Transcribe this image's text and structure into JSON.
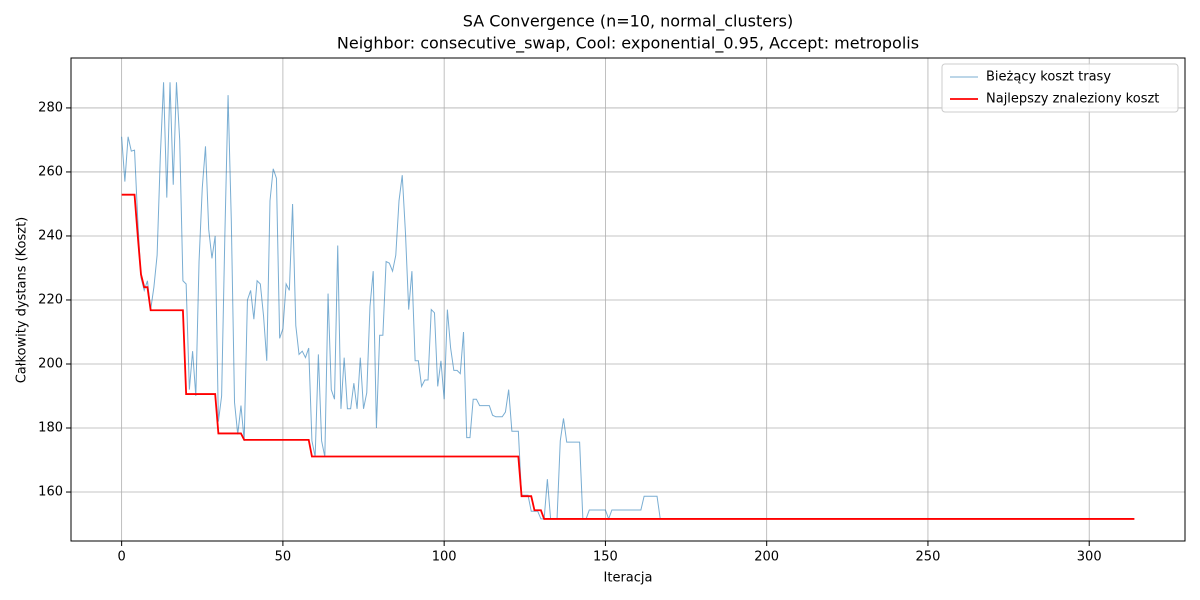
{
  "chart_data": {
    "type": "line",
    "title": "SA Convergence (n=10, normal_clusters)",
    "subtitle": "Neighbor: consecutive_swap, Cool: exponential_0.95, Accept: metropolis",
    "x_label": "Iteracja",
    "y_label": "Całkowity dystans (Koszt)",
    "xlim": [
      -15.7,
      329.7
    ],
    "ylim": [
      144.7,
      295.6
    ],
    "xticks": [
      0,
      50,
      100,
      150,
      200,
      250,
      300
    ],
    "yticks": [
      160,
      180,
      200,
      220,
      240,
      260,
      280
    ],
    "grid": true,
    "legend": "upper right",
    "x": [
      0,
      1,
      2,
      3,
      4,
      5,
      6,
      7,
      8,
      9,
      10,
      11,
      12,
      13,
      14,
      15,
      16,
      17,
      18,
      19,
      20,
      21,
      22,
      23,
      24,
      25,
      26,
      27,
      28,
      29,
      30,
      31,
      32,
      33,
      34,
      35,
      36,
      37,
      38,
      39,
      40,
      41,
      42,
      43,
      44,
      45,
      46,
      47,
      48,
      49,
      50,
      51,
      52,
      53,
      54,
      55,
      56,
      57,
      58,
      59,
      60,
      61,
      62,
      63,
      64,
      65,
      66,
      67,
      68,
      69,
      70,
      71,
      72,
      73,
      74,
      75,
      76,
      77,
      78,
      79,
      80,
      81,
      82,
      83,
      84,
      85,
      86,
      87,
      88,
      89,
      90,
      91,
      92,
      93,
      94,
      95,
      96,
      97,
      98,
      99,
      100,
      101,
      102,
      103,
      104,
      105,
      106,
      107,
      108,
      109,
      110,
      111,
      112,
      113,
      114,
      115,
      116,
      117,
      118,
      119,
      120,
      121,
      122,
      123,
      124,
      125,
      126,
      127,
      128,
      129,
      130,
      131,
      132,
      133,
      134,
      135,
      136,
      137,
      138,
      139,
      140,
      141,
      142,
      143,
      144,
      145,
      146,
      147,
      148,
      149,
      150,
      151,
      152,
      153,
      154,
      155,
      156,
      157,
      158,
      159,
      160,
      161,
      162,
      163,
      164,
      165,
      166,
      167,
      168,
      169,
      170,
      171,
      172,
      173,
      174,
      175,
      176,
      177,
      178,
      179,
      180,
      181,
      182,
      183,
      184,
      185,
      186,
      187,
      188,
      189,
      190,
      191,
      192,
      193,
      194,
      195,
      196,
      197,
      198,
      199,
      200,
      201,
      202,
      203,
      204,
      205,
      206,
      207,
      208,
      209,
      210,
      211,
      212,
      213,
      214,
      215,
      216,
      217,
      218,
      219,
      220,
      221,
      222,
      223,
      224,
      225,
      226,
      227,
      228,
      229,
      230,
      231,
      232,
      233,
      234,
      235,
      236,
      237,
      238,
      239,
      240,
      241,
      242,
      243,
      244,
      245,
      246,
      247,
      248,
      249,
      250,
      251,
      252,
      253,
      254,
      255,
      256,
      257,
      258,
      259,
      260,
      261,
      262,
      263,
      264,
      265,
      266,
      267,
      268,
      269,
      270,
      271,
      272,
      273,
      274,
      275,
      276,
      277,
      278,
      279,
      280,
      281,
      282,
      283,
      284,
      285,
      286,
      287,
      288,
      289,
      290,
      291,
      292,
      293,
      294,
      295,
      296,
      297,
      298,
      299,
      300,
      301,
      302,
      303,
      304,
      305,
      306,
      307,
      308,
      309,
      310,
      311,
      312,
      313,
      314
    ],
    "series": [
      {
        "name": "Bieżący koszt trasy",
        "color": "#1f77b4",
        "values": [
          271,
          257,
          271,
          266.5,
          266.8,
          245,
          227,
          223,
          226,
          217,
          224,
          234,
          265,
          288,
          252,
          288,
          256,
          288,
          270,
          226,
          225,
          192,
          204,
          190,
          232,
          255,
          268,
          242,
          233,
          240,
          182,
          190,
          240,
          284,
          245,
          188,
          178,
          187,
          176,
          220,
          223,
          214,
          226,
          225,
          215,
          201,
          251,
          261,
          258,
          208,
          211,
          225,
          223,
          250,
          212,
          203,
          204,
          202,
          205,
          176,
          171,
          203,
          176,
          171,
          222,
          192,
          189,
          237,
          186,
          202,
          186,
          186,
          194,
          186,
          202,
          186,
          191,
          218,
          229,
          180,
          209,
          209,
          232,
          231.5,
          229,
          234,
          251,
          259,
          241,
          217,
          229,
          201,
          201,
          193,
          195,
          195,
          217,
          216,
          193,
          201,
          189,
          217,
          205,
          198,
          198,
          197,
          210,
          177,
          177,
          189,
          189,
          187,
          187,
          187,
          187,
          184,
          183.5,
          183.5,
          183.5,
          185,
          192,
          179,
          179,
          179,
          159,
          159,
          159,
          154,
          154,
          154,
          151.6,
          151.6,
          164,
          151.6,
          151.6,
          151.6,
          176,
          183,
          175.6,
          175.6,
          175.6,
          175.6,
          175.6,
          151.6,
          151.6,
          154.4,
          154.4,
          154.4,
          154.4,
          154.4,
          154.4,
          151.6,
          154.4,
          154.4,
          154.4,
          154.4,
          154.4,
          154.4,
          154.4,
          154.4,
          154.4,
          154.4,
          158.7,
          158.7,
          158.7,
          158.7,
          158.7,
          151.6,
          151.6,
          151.6,
          151.6,
          151.6,
          151.6,
          151.6,
          151.6,
          151.6,
          151.6,
          151.6,
          151.6,
          151.6,
          151.6,
          151.6,
          151.6,
          151.6,
          151.6,
          151.6,
          151.6,
          151.6,
          151.6,
          151.6,
          151.6,
          151.6,
          151.6,
          151.6,
          151.6,
          151.6,
          151.6,
          151.6,
          151.6,
          151.6,
          151.6,
          151.6,
          151.6,
          151.6,
          151.6,
          151.6,
          151.6,
          151.6,
          151.6,
          151.6,
          151.6,
          151.6,
          151.6,
          151.6,
          151.6,
          151.6,
          151.6,
          151.6,
          151.6,
          151.6,
          151.6,
          151.6,
          151.6,
          151.6,
          151.6,
          151.6,
          151.6,
          151.6,
          151.6,
          151.6,
          151.6,
          151.6,
          151.6,
          151.6,
          151.6,
          151.6,
          151.6,
          151.6,
          151.6,
          151.6,
          151.6,
          151.6,
          151.6,
          151.6,
          151.6,
          151.6,
          151.6,
          151.6,
          151.6,
          151.6,
          151.6,
          151.6,
          151.6,
          151.6,
          151.6,
          151.6,
          151.6,
          151.6,
          151.6,
          151.6,
          151.6,
          151.6,
          151.6,
          151.6,
          151.6,
          151.6,
          151.6,
          151.6,
          151.6,
          151.6,
          151.6,
          151.6,
          151.6,
          151.6,
          151.6,
          151.6,
          151.6,
          151.6,
          151.6,
          151.6,
          151.6,
          151.6,
          151.6,
          151.6,
          151.6,
          151.6,
          151.6,
          151.6,
          151.6,
          151.6,
          151.6,
          151.6,
          151.6,
          151.6,
          151.6,
          151.6,
          151.6,
          151.6,
          151.6,
          151.6,
          151.6,
          151.6,
          151.6,
          151.6,
          151.6,
          151.6,
          151.6,
          151.6,
          151.6,
          151.6,
          151.6,
          151.6,
          151.6,
          151.6,
          151.6
        ]
      },
      {
        "name": "Najlepszy znaleziony koszt",
        "color": "#ff0000",
        "values": [
          252.9,
          252.9,
          252.9,
          252.9,
          252.9,
          240,
          228,
          224,
          224,
          216.8,
          216.8,
          216.8,
          216.8,
          216.8,
          216.8,
          216.8,
          216.8,
          216.8,
          216.8,
          216.8,
          190.6,
          190.6,
          190.6,
          190.6,
          190.6,
          190.6,
          190.6,
          190.6,
          190.6,
          190.6,
          178.3,
          178.3,
          178.3,
          178.3,
          178.3,
          178.3,
          178.3,
          178.3,
          176.3,
          176.3,
          176.3,
          176.3,
          176.3,
          176.3,
          176.3,
          176.3,
          176.3,
          176.3,
          176.3,
          176.3,
          176.3,
          176.3,
          176.3,
          176.3,
          176.3,
          176.3,
          176.3,
          176.3,
          176.3,
          171.1,
          171.1,
          171.1,
          171.1,
          171.1,
          171.1,
          171.1,
          171.1,
          171.1,
          171.1,
          171.1,
          171.1,
          171.1,
          171.1,
          171.1,
          171.1,
          171.1,
          171.1,
          171.1,
          171.1,
          171.1,
          171.1,
          171.1,
          171.1,
          171.1,
          171.1,
          171.1,
          171.1,
          171.1,
          171.1,
          171.1,
          171.1,
          171.1,
          171.1,
          171.1,
          171.1,
          171.1,
          171.1,
          171.1,
          171.1,
          171.1,
          171.1,
          171.1,
          171.1,
          171.1,
          171.1,
          171.1,
          171.1,
          171.1,
          171.1,
          171.1,
          171.1,
          171.1,
          171.1,
          171.1,
          171.1,
          171.1,
          171.1,
          171.1,
          171.1,
          171.1,
          171.1,
          171.1,
          171.1,
          171.1,
          158.7,
          158.7,
          158.7,
          158.7,
          154.3,
          154.3,
          154.3,
          151.6,
          151.6,
          151.6,
          151.6,
          151.6,
          151.6,
          151.6,
          151.6,
          151.6,
          151.6,
          151.6,
          151.6,
          151.6,
          151.6,
          151.6,
          151.6,
          151.6,
          151.6,
          151.6,
          151.6,
          151.6,
          151.6,
          151.6,
          151.6,
          151.6,
          151.6,
          151.6,
          151.6,
          151.6,
          151.6,
          151.6,
          151.6,
          151.6,
          151.6,
          151.6,
          151.6,
          151.6,
          151.6,
          151.6,
          151.6,
          151.6,
          151.6,
          151.6,
          151.6,
          151.6,
          151.6,
          151.6,
          151.6,
          151.6,
          151.6,
          151.6,
          151.6,
          151.6,
          151.6,
          151.6,
          151.6,
          151.6,
          151.6,
          151.6,
          151.6,
          151.6,
          151.6,
          151.6,
          151.6,
          151.6,
          151.6,
          151.6,
          151.6,
          151.6,
          151.6,
          151.6,
          151.6,
          151.6,
          151.6,
          151.6,
          151.6,
          151.6,
          151.6,
          151.6,
          151.6,
          151.6,
          151.6,
          151.6,
          151.6,
          151.6,
          151.6,
          151.6,
          151.6,
          151.6,
          151.6,
          151.6,
          151.6,
          151.6,
          151.6,
          151.6,
          151.6,
          151.6,
          151.6,
          151.6,
          151.6,
          151.6,
          151.6,
          151.6,
          151.6,
          151.6,
          151.6,
          151.6,
          151.6,
          151.6,
          151.6,
          151.6,
          151.6,
          151.6,
          151.6,
          151.6,
          151.6,
          151.6,
          151.6,
          151.6,
          151.6,
          151.6,
          151.6,
          151.6,
          151.6,
          151.6,
          151.6,
          151.6,
          151.6,
          151.6,
          151.6,
          151.6,
          151.6,
          151.6,
          151.6,
          151.6,
          151.6,
          151.6,
          151.6,
          151.6,
          151.6,
          151.6,
          151.6,
          151.6,
          151.6,
          151.6,
          151.6,
          151.6,
          151.6,
          151.6,
          151.6,
          151.6,
          151.6,
          151.6,
          151.6,
          151.6,
          151.6,
          151.6,
          151.6,
          151.6,
          151.6,
          151.6,
          151.6,
          151.6,
          151.6,
          151.6,
          151.6,
          151.6,
          151.6,
          151.6,
          151.6,
          151.6,
          151.6,
          151.6,
          151.6,
          151.6,
          151.6,
          151.6,
          151.6,
          151.6,
          151.6,
          151.6,
          151.6,
          151.6,
          151.6
        ]
      }
    ]
  }
}
